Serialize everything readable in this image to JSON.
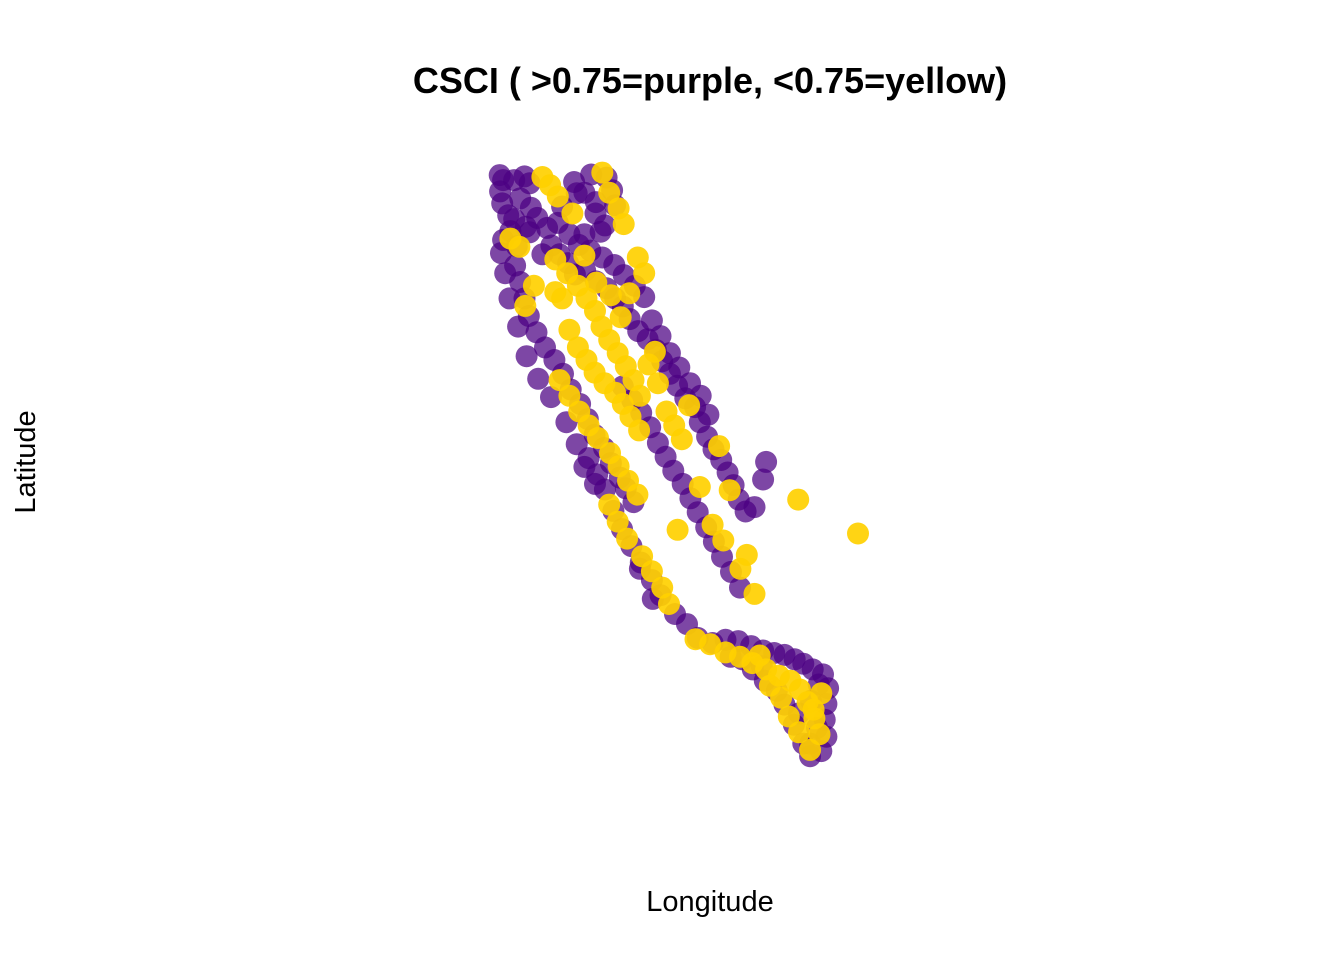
{
  "chart_data": {
    "type": "scatter",
    "title": "CSCI ( >0.75=purple, <0.75=yellow)",
    "xlabel": "Longitude",
    "ylabel": "Latitude",
    "xlim": [
      -124.5,
      -114.0
    ],
    "ylim": [
      32.4,
      42.1
    ],
    "grid": false,
    "legend": "none",
    "colors": {
      "above_threshold": "#4B0082",
      "below_threshold": "#FFD000"
    },
    "threshold": 0.75,
    "series": [
      {
        "name": ">0.75",
        "color": "#4B0082",
        "points": [
          [
            -124.18,
            41.86
          ],
          [
            -124.1,
            41.78
          ],
          [
            -124.17,
            41.6
          ],
          [
            -124.12,
            41.41
          ],
          [
            -123.84,
            41.78
          ],
          [
            -123.6,
            41.84
          ],
          [
            -123.48,
            41.73
          ],
          [
            -123.7,
            41.49
          ],
          [
            -123.45,
            41.34
          ],
          [
            -123.84,
            41.16
          ],
          [
            -123.93,
            40.97
          ],
          [
            -124.1,
            40.83
          ],
          [
            -124.15,
            40.62
          ],
          [
            -123.78,
            40.73
          ],
          [
            -123.57,
            41.04
          ],
          [
            -123.3,
            41.18
          ],
          [
            -123.07,
            41.02
          ],
          [
            -122.72,
            41.36
          ],
          [
            -122.38,
            41.57
          ],
          [
            -122.04,
            41.87
          ],
          [
            -121.68,
            41.82
          ],
          [
            -121.55,
            41.62
          ],
          [
            -121.48,
            41.38
          ],
          [
            -121.93,
            41.43
          ],
          [
            -122.97,
            40.74
          ],
          [
            -122.78,
            40.6
          ],
          [
            -122.58,
            40.46
          ],
          [
            -122.42,
            40.28
          ],
          [
            -122.18,
            40.34
          ],
          [
            -121.93,
            40.17
          ],
          [
            -121.68,
            40.06
          ],
          [
            -121.48,
            39.9
          ],
          [
            -121.3,
            39.77
          ],
          [
            -121.14,
            39.57
          ],
          [
            -120.94,
            39.38
          ],
          [
            -120.72,
            39.25
          ],
          [
            -120.53,
            39.08
          ],
          [
            -120.38,
            38.9
          ],
          [
            -120.2,
            38.7
          ],
          [
            -120.03,
            38.51
          ],
          [
            -119.84,
            38.31
          ],
          [
            -119.61,
            38.17
          ],
          [
            -119.5,
            37.93
          ],
          [
            -119.33,
            37.7
          ],
          [
            -119.18,
            37.5
          ],
          [
            -119.0,
            37.33
          ],
          [
            -118.85,
            37.13
          ],
          [
            -118.71,
            36.93
          ],
          [
            -118.59,
            36.7
          ],
          [
            -118.43,
            36.51
          ],
          [
            -118.22,
            36.58
          ],
          [
            -118.02,
            37.02
          ],
          [
            -117.95,
            37.3
          ],
          [
            -120.62,
            39.55
          ],
          [
            -120.42,
            39.3
          ],
          [
            -120.2,
            39.03
          ],
          [
            -119.98,
            38.8
          ],
          [
            -119.73,
            38.55
          ],
          [
            -119.48,
            38.35
          ],
          [
            -119.3,
            38.05
          ],
          [
            -123.82,
            40.42
          ],
          [
            -123.7,
            40.16
          ],
          [
            -123.6,
            39.9
          ],
          [
            -123.5,
            39.62
          ],
          [
            -123.32,
            39.36
          ],
          [
            -123.12,
            39.12
          ],
          [
            -122.9,
            38.92
          ],
          [
            -122.7,
            38.7
          ],
          [
            -122.52,
            38.45
          ],
          [
            -122.3,
            38.22
          ],
          [
            -122.12,
            37.98
          ],
          [
            -121.96,
            37.73
          ],
          [
            -121.74,
            37.52
          ],
          [
            -121.58,
            37.28
          ],
          [
            -121.37,
            37.05
          ],
          [
            -121.23,
            36.88
          ],
          [
            -121.05,
            36.66
          ],
          [
            -122.1,
            37.36
          ],
          [
            -121.9,
            37.1
          ],
          [
            -121.72,
            36.86
          ],
          [
            -121.52,
            36.52
          ],
          [
            -121.32,
            36.23
          ],
          [
            -121.1,
            35.96
          ],
          [
            -120.88,
            35.7
          ],
          [
            -120.62,
            35.42
          ],
          [
            -120.42,
            35.18
          ],
          [
            -120.9,
            35.6
          ],
          [
            -120.6,
            35.12
          ],
          [
            -120.08,
            34.88
          ],
          [
            -119.8,
            34.72
          ],
          [
            -122.82,
            41.1
          ],
          [
            -122.55,
            40.92
          ],
          [
            -122.33,
            40.75
          ],
          [
            -122.06,
            40.66
          ],
          [
            -121.78,
            40.55
          ],
          [
            -121.5,
            40.43
          ],
          [
            -121.28,
            40.27
          ],
          [
            -121.02,
            40.1
          ],
          [
            -120.8,
            39.92
          ],
          [
            -121.82,
            40.96
          ],
          [
            -122.2,
            40.92
          ],
          [
            -123.48,
            40.95
          ],
          [
            -123.18,
            40.6
          ],
          [
            -118.9,
            34.47
          ],
          [
            -118.6,
            34.45
          ],
          [
            -118.3,
            34.37
          ],
          [
            -118.02,
            34.3
          ],
          [
            -117.76,
            34.26
          ],
          [
            -117.52,
            34.23
          ],
          [
            -117.28,
            34.16
          ],
          [
            -117.08,
            34.09
          ],
          [
            -116.86,
            34.0
          ],
          [
            -116.62,
            33.92
          ],
          [
            -116.5,
            33.7
          ],
          [
            -116.54,
            33.45
          ],
          [
            -116.58,
            33.2
          ],
          [
            -116.54,
            32.93
          ],
          [
            -116.66,
            32.7
          ],
          [
            -116.92,
            32.62
          ],
          [
            -117.08,
            32.82
          ],
          [
            -117.3,
            33.12
          ],
          [
            -117.52,
            33.44
          ],
          [
            -117.7,
            33.66
          ],
          [
            -117.98,
            33.82
          ],
          [
            -118.26,
            34.0
          ],
          [
            -118.5,
            34.16
          ],
          [
            -118.78,
            34.2
          ],
          [
            -119.2,
            34.42
          ],
          [
            -119.55,
            34.5
          ],
          [
            -116.72,
            33.76
          ],
          [
            -116.9,
            33.5
          ],
          [
            -116.76,
            33.07
          ],
          [
            -116.92,
            32.82
          ],
          [
            -117.18,
            33.3
          ],
          [
            -118.05,
            34.05
          ],
          [
            -121.3,
            38.5
          ],
          [
            -121.08,
            38.28
          ],
          [
            -120.87,
            38.08
          ],
          [
            -120.66,
            37.85
          ],
          [
            -120.48,
            37.6
          ],
          [
            -120.3,
            37.38
          ],
          [
            -120.12,
            37.16
          ],
          [
            -119.9,
            36.95
          ],
          [
            -119.72,
            36.72
          ],
          [
            -119.55,
            36.5
          ],
          [
            -119.35,
            36.26
          ],
          [
            -119.17,
            36.03
          ],
          [
            -118.98,
            35.79
          ],
          [
            -118.77,
            35.55
          ],
          [
            -118.56,
            35.3
          ],
          [
            -122.44,
            41.75
          ],
          [
            -122.2,
            41.58
          ],
          [
            -121.94,
            41.25
          ],
          [
            -121.72,
            41.06
          ],
          [
            -123.98,
            41.22
          ],
          [
            -124.05,
            40.3
          ],
          [
            -123.95,
            39.9
          ],
          [
            -123.75,
            39.45
          ],
          [
            -123.55,
            38.98
          ],
          [
            -123.28,
            38.62
          ],
          [
            -122.98,
            38.33
          ],
          [
            -122.62,
            37.93
          ],
          [
            -122.38,
            37.58
          ],
          [
            -122.2,
            37.22
          ],
          [
            -121.95,
            36.95
          ]
        ]
      },
      {
        "name": "<0.75",
        "color": "#FFD000",
        "points": [
          [
            -123.18,
            41.83
          ],
          [
            -123.0,
            41.7
          ],
          [
            -122.82,
            41.52
          ],
          [
            -121.78,
            41.9
          ],
          [
            -121.62,
            41.58
          ],
          [
            -121.4,
            41.33
          ],
          [
            -121.28,
            41.08
          ],
          [
            -123.93,
            40.85
          ],
          [
            -123.72,
            40.72
          ],
          [
            -122.88,
            40.52
          ],
          [
            -122.6,
            40.3
          ],
          [
            -122.35,
            40.1
          ],
          [
            -122.15,
            39.9
          ],
          [
            -121.95,
            39.7
          ],
          [
            -121.8,
            39.45
          ],
          [
            -121.62,
            39.24
          ],
          [
            -121.42,
            39.03
          ],
          [
            -121.23,
            38.82
          ],
          [
            -121.05,
            38.6
          ],
          [
            -120.9,
            38.35
          ],
          [
            -122.55,
            39.4
          ],
          [
            -122.35,
            39.12
          ],
          [
            -122.15,
            38.92
          ],
          [
            -121.96,
            38.72
          ],
          [
            -121.73,
            38.55
          ],
          [
            -121.48,
            38.4
          ],
          [
            -121.3,
            38.22
          ],
          [
            -121.12,
            38.02
          ],
          [
            -120.92,
            37.8
          ],
          [
            -122.78,
            38.6
          ],
          [
            -122.55,
            38.35
          ],
          [
            -122.32,
            38.1
          ],
          [
            -122.1,
            37.88
          ],
          [
            -121.88,
            37.68
          ],
          [
            -121.6,
            37.44
          ],
          [
            -121.4,
            37.23
          ],
          [
            -121.18,
            37.0
          ],
          [
            -120.96,
            36.78
          ],
          [
            -120.62,
            35.56
          ],
          [
            -120.38,
            35.3
          ],
          [
            -120.22,
            35.04
          ],
          [
            -119.6,
            34.48
          ],
          [
            -119.26,
            34.4
          ],
          [
            -118.9,
            34.27
          ],
          [
            -118.56,
            34.2
          ],
          [
            -118.27,
            34.1
          ],
          [
            -117.95,
            34.0
          ],
          [
            -117.65,
            33.9
          ],
          [
            -117.38,
            33.82
          ],
          [
            -117.16,
            33.68
          ],
          [
            -116.98,
            33.48
          ],
          [
            -116.82,
            33.22
          ],
          [
            -116.7,
            32.97
          ],
          [
            -116.92,
            32.72
          ],
          [
            -117.18,
            33.0
          ],
          [
            -117.42,
            33.25
          ],
          [
            -117.6,
            33.55
          ],
          [
            -117.86,
            33.74
          ],
          [
            -116.66,
            33.62
          ],
          [
            -116.84,
            33.36
          ],
          [
            -120.48,
            38.55
          ],
          [
            -120.28,
            38.1
          ],
          [
            -120.1,
            37.88
          ],
          [
            -119.92,
            37.66
          ],
          [
            -119.5,
            36.9
          ],
          [
            -119.2,
            36.3
          ],
          [
            -118.95,
            36.05
          ],
          [
            -118.55,
            35.6
          ],
          [
            -118.22,
            35.2
          ],
          [
            -118.4,
            35.82
          ],
          [
            -117.2,
            36.7
          ],
          [
            -115.8,
            36.16
          ],
          [
            -120.8,
            40.3
          ],
          [
            -120.95,
            40.55
          ],
          [
            -121.15,
            39.98
          ],
          [
            -122.72,
            39.9
          ],
          [
            -122.88,
            40.0
          ],
          [
            -123.38,
            40.1
          ],
          [
            -123.58,
            39.78
          ],
          [
            -122.48,
            41.25
          ],
          [
            -122.2,
            40.58
          ],
          [
            -121.92,
            40.15
          ],
          [
            -121.58,
            39.95
          ],
          [
            -121.35,
            39.6
          ],
          [
            -120.7,
            38.85
          ],
          [
            -120.55,
            39.05
          ],
          [
            -119.75,
            38.2
          ],
          [
            -119.05,
            37.55
          ],
          [
            -118.8,
            36.85
          ],
          [
            -120.02,
            36.22
          ],
          [
            -121.62,
            36.62
          ],
          [
            -121.42,
            36.35
          ],
          [
            -121.2,
            36.08
          ],
          [
            -120.85,
            35.8
          ],
          [
            -118.1,
            34.22
          ]
        ]
      }
    ]
  }
}
